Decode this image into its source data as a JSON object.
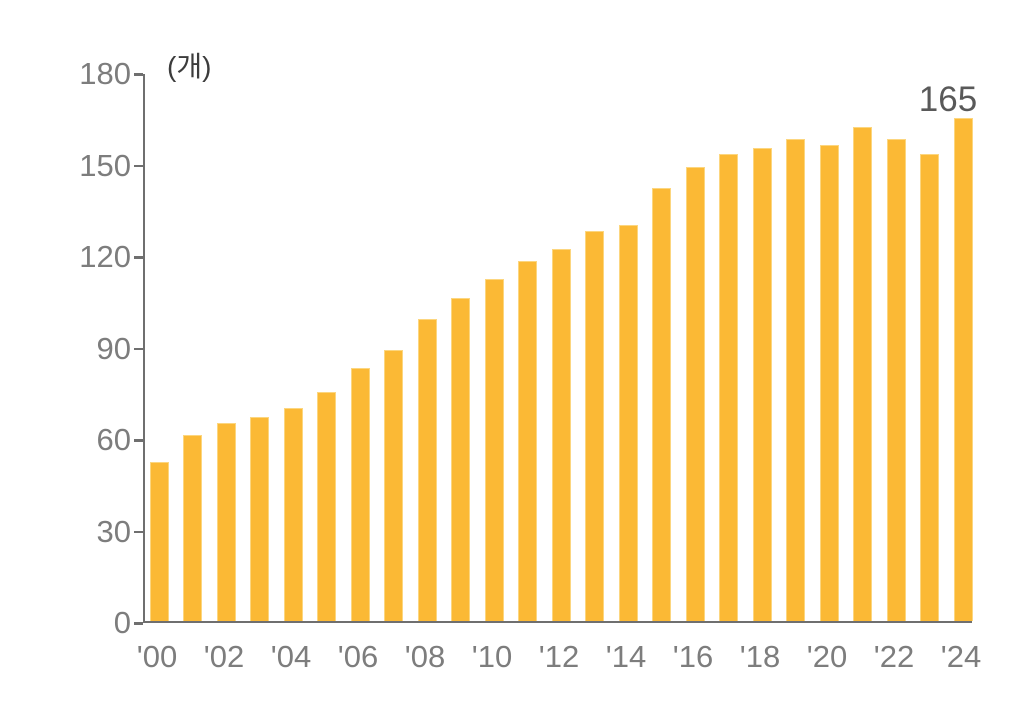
{
  "chart_data": {
    "type": "bar",
    "title": "",
    "xlabel": "",
    "ylabel": "",
    "unit_label": "(개)",
    "categories": [
      "'00",
      "'01",
      "'02",
      "'03",
      "'04",
      "'05",
      "'06",
      "'07",
      "'08",
      "'09",
      "'10",
      "'11",
      "'12",
      "'13",
      "'14",
      "'15",
      "'16",
      "'17",
      "'18",
      "'19",
      "'20",
      "'21",
      "'22",
      "'23",
      "'24"
    ],
    "values": [
      52,
      61,
      65,
      67,
      70,
      75,
      83,
      89,
      99,
      106,
      112,
      118,
      122,
      128,
      130,
      142,
      149,
      153,
      155,
      158,
      156,
      162,
      158,
      153,
      165
    ],
    "x_tick_labels": [
      "'00",
      "'02",
      "'04",
      "'06",
      "'08",
      "'10",
      "'12",
      "'14",
      "'16",
      "'18",
      "'20",
      "'22",
      "'24"
    ],
    "x_tick_every": 2,
    "y_ticks": [
      0,
      30,
      60,
      90,
      120,
      150,
      180
    ],
    "ylim": [
      0,
      180
    ],
    "grid": false,
    "legend_position": "none",
    "annotations": [
      {
        "text": "165",
        "bar_index": 24
      }
    ],
    "colors": {
      "bar_fill": "#fbb935",
      "bar_edge": "#fcd67f",
      "axis": "#6f6f6f",
      "tick_label": "#7d7d7d",
      "unit_label": "#3c3c3c",
      "annotation": "#595959",
      "background": "#ffffff"
    }
  }
}
